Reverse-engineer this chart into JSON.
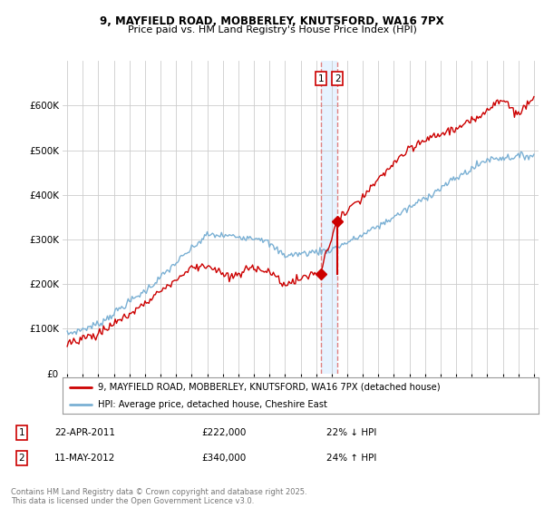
{
  "title_line1": "9, MAYFIELD ROAD, MOBBERLEY, KNUTSFORD, WA16 7PX",
  "title_line2": "Price paid vs. HM Land Registry's House Price Index (HPI)",
  "legend_line1": "9, MAYFIELD ROAD, MOBBERLEY, KNUTSFORD, WA16 7PX (detached house)",
  "legend_line2": "HPI: Average price, detached house, Cheshire East",
  "transaction1_label": "1",
  "transaction1_date": "22-APR-2011",
  "transaction1_price": "£222,000",
  "transaction1_hpi": "22% ↓ HPI",
  "transaction2_label": "2",
  "transaction2_date": "11-MAY-2012",
  "transaction2_price": "£340,000",
  "transaction2_hpi": "24% ↑ HPI",
  "footer": "Contains HM Land Registry data © Crown copyright and database right 2025.\nThis data is licensed under the Open Government Licence v3.0.",
  "property_color": "#cc0000",
  "hpi_color": "#7ab0d4",
  "vline_color": "#e08080",
  "shade_color": "#ddeeff",
  "background_color": "#ffffff",
  "grid_color": "#cccccc",
  "ylim": [
    0,
    700000
  ],
  "yticks": [
    0,
    100000,
    200000,
    300000,
    400000,
    500000,
    600000
  ],
  "transaction1_x": 2011.31,
  "transaction1_y": 222000,
  "transaction2_x": 2012.37,
  "transaction2_y": 340000,
  "xmin": 1995,
  "xmax": 2025
}
